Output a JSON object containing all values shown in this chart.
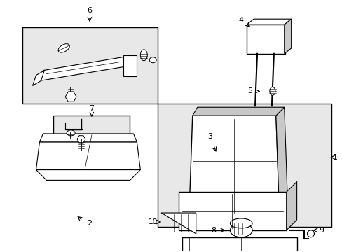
{
  "bg_color": "#ffffff",
  "line_color": "#000000",
  "fill_gray": "#e8e8e8",
  "part_gray": "#c8c8c8",
  "dark_gray": "#888888",
  "fig_width": 4.89,
  "fig_height": 3.6,
  "dpi": 100
}
